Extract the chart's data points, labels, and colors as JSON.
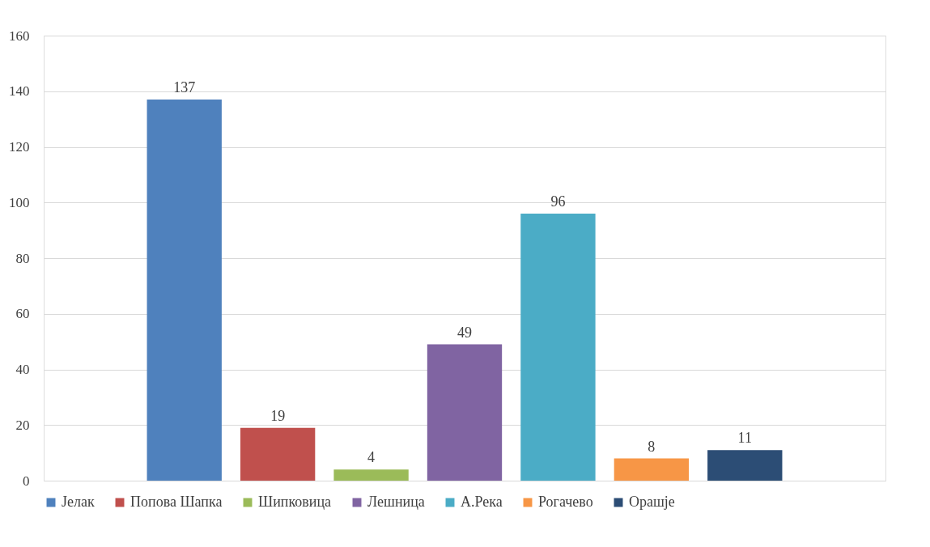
{
  "chart_data": {
    "type": "bar",
    "categories": [
      null
    ],
    "series": [
      {
        "name": "Јелак",
        "color": "#4f81bd",
        "values": [
          137
        ]
      },
      {
        "name": "Попова Шапка",
        "color": "#c0504d",
        "values": [
          19
        ]
      },
      {
        "name": "Шипковица",
        "color": "#9bbb59",
        "values": [
          4
        ]
      },
      {
        "name": "Лешница",
        "color": "#8064a2",
        "values": [
          49
        ]
      },
      {
        "name": "А.Река",
        "color": "#4bacc6",
        "values": [
          96
        ]
      },
      {
        "name": "Рогачево",
        "color": "#f79646",
        "values": [
          8
        ]
      },
      {
        "name": "Орашје",
        "color": "#2c4d75",
        "values": [
          11
        ]
      }
    ],
    "ylim": [
      0,
      160
    ],
    "yticks": [
      0,
      20,
      40,
      60,
      80,
      100,
      120,
      140,
      160
    ],
    "grid": "y",
    "legend": "bottom",
    "data_labels": true
  }
}
